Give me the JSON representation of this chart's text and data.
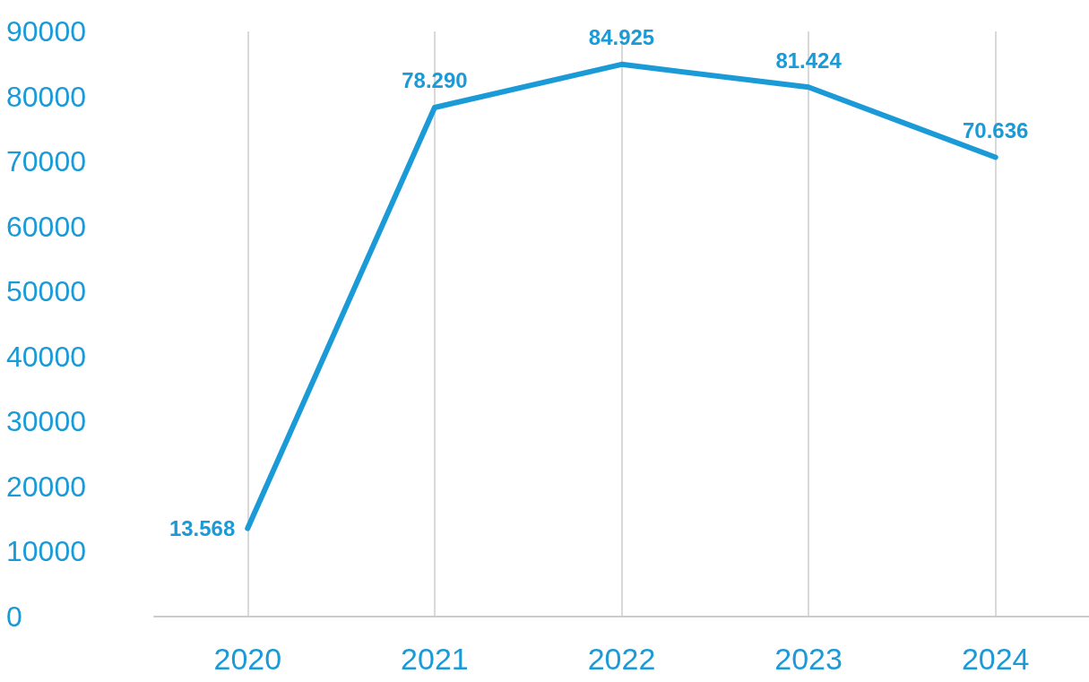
{
  "chart_data": {
    "type": "line",
    "categories": [
      "2020",
      "2021",
      "2022",
      "2023",
      "2024"
    ],
    "series": [
      {
        "color": "#1a9ad6",
        "values": [
          13568,
          78290,
          84925,
          81424,
          70636
        ],
        "value_labels": [
          "13.568",
          "78.290",
          "84.925",
          "81.424",
          "70.636"
        ]
      }
    ],
    "ylim": [
      0,
      90000
    ],
    "yticks": [
      0,
      10000,
      20000,
      30000,
      40000,
      50000,
      60000,
      70000,
      80000,
      90000
    ],
    "grid": "x",
    "marker": "none",
    "line_style": "solid"
  }
}
